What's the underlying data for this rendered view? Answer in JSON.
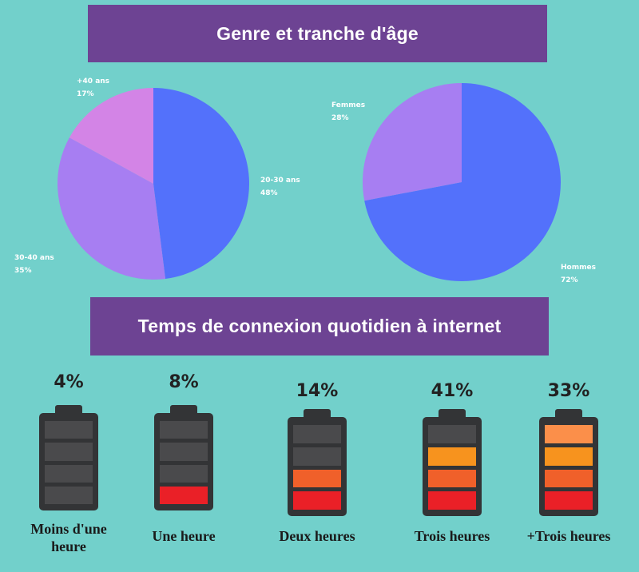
{
  "headers": {
    "top": "Genre et tranche d'âge",
    "middle": "Temps de connexion quotidien à internet"
  },
  "chart_data": [
    {
      "type": "pie",
      "title": "",
      "slices": [
        {
          "label": "20-30 ans",
          "value": 48,
          "value_label": "48%",
          "color": "#5371fb"
        },
        {
          "label": "30-40 ans",
          "value": 35,
          "value_label": "35%",
          "color": "#a77ef2"
        },
        {
          "label": "+40 ans",
          "value": 17,
          "value_label": "17%",
          "color": "#d384e6"
        }
      ]
    },
    {
      "type": "pie",
      "title": "",
      "slices": [
        {
          "label": "Hommes",
          "value": 72,
          "value_label": "72%",
          "color": "#5371fb"
        },
        {
          "label": "Femmes",
          "value": 28,
          "value_label": "28%",
          "color": "#a77ef2"
        }
      ]
    },
    {
      "type": "bar",
      "title": "Temps de connexion quotidien à internet",
      "categories": [
        "Moins d'une heure",
        "Une heure",
        "Deux heures",
        "Trois heures",
        "+Trois heures"
      ],
      "values": [
        4,
        8,
        14,
        41,
        33
      ],
      "value_labels": [
        "4%",
        "8%",
        "14%",
        "41%",
        "33%"
      ],
      "filled_cells": [
        0,
        1,
        2,
        3,
        4
      ],
      "total_cells": 4
    }
  ],
  "battery_colors": {
    "empty": "#4a4a4c",
    "level_1": "#ea2027",
    "level_2": "#f0602a",
    "level_3": "#f7931e",
    "level_4": "#fb8f4a"
  }
}
